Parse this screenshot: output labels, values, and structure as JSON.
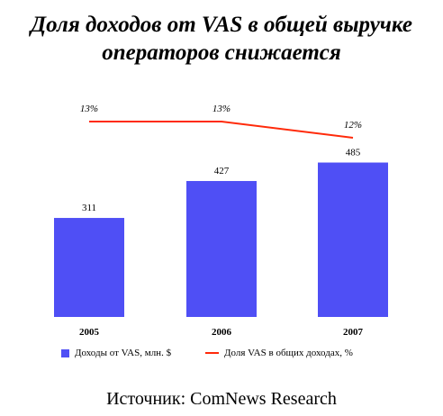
{
  "title": "Доля доходов от VAS в общей выручке операторов снижается",
  "source": "Источник: ComNews Research",
  "colors": {
    "bar": "#4f4ff5",
    "line": "#ff2a0a"
  },
  "chart_data": {
    "type": "bar",
    "categories": [
      "2005",
      "2006",
      "2007"
    ],
    "series": [
      {
        "name": "Доходы от VAS, млн. $",
        "type": "bar",
        "values": [
          311,
          427,
          485
        ],
        "labels": [
          "311",
          "427",
          "485"
        ]
      },
      {
        "name": "Доля VAS в общих доходах, %",
        "type": "line",
        "values": [
          13,
          13,
          12
        ],
        "labels": [
          "13%",
          "13%",
          "12%"
        ]
      }
    ],
    "ylim": [
      0,
      560
    ],
    "line_ylim": [
      10,
      14
    ],
    "legend_position": "bottom",
    "grid": false
  }
}
